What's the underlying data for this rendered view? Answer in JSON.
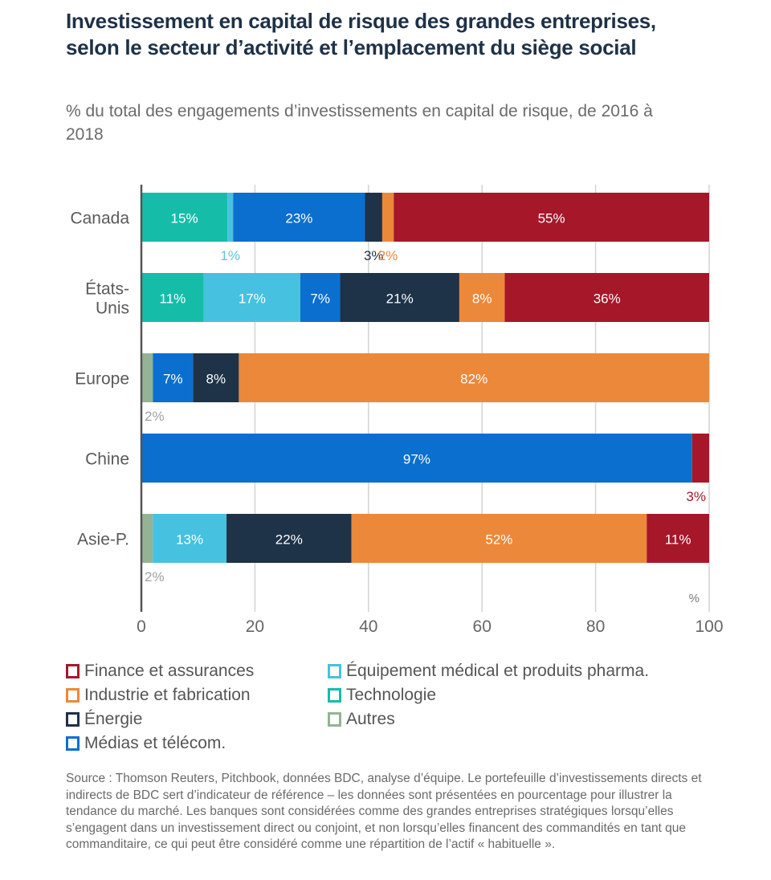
{
  "header": {
    "title": "Investissement en capital de risque des grandes entreprises, selon le secteur d’activité et l’emplacement du siège social",
    "subtitle": "% du total des engagements d’investissements en capital de risque, de 2016 à 2018"
  },
  "chart_data": {
    "type": "bar",
    "orientation": "horizontal",
    "stacked": true,
    "title": "Investissement en capital de risque des grandes entreprises, selon le secteur d’activité et l’emplacement du siège social",
    "subtitle": "% du total des engagements d’investissements en capital de risque, de 2016 à 2018",
    "xlabel": "%",
    "ylabel": "",
    "xlim": [
      0,
      100
    ],
    "xticks": [
      "0",
      "20",
      "40",
      "60",
      "80",
      "100"
    ],
    "grid": true,
    "legend_position": "bottom",
    "categories": [
      "Canada",
      "États-Unis",
      "Europe",
      "Chine",
      "Asie-P."
    ],
    "category_labels": [
      [
        "Canada"
      ],
      [
        "États-",
        "Unis"
      ],
      [
        "Europe"
      ],
      [
        "Chine"
      ],
      [
        "Asie-P."
      ]
    ],
    "series": [
      {
        "name": "Autres",
        "color": "#94b394",
        "values": [
          0,
          0,
          2,
          0,
          2
        ]
      },
      {
        "name": "Technologie",
        "color": "#15bda9",
        "values": [
          15,
          11,
          0,
          0,
          0
        ]
      },
      {
        "name": "Équipement médical et produits pharma.",
        "color": "#47c1e0",
        "values": [
          1,
          17,
          0,
          0,
          13
        ]
      },
      {
        "name": "Médias et télécom.",
        "color": "#0b6fcf",
        "values": [
          23,
          7,
          7,
          97,
          0
        ]
      },
      {
        "name": "Énergie",
        "color": "#1e3248",
        "values": [
          3,
          21,
          8,
          0,
          22
        ]
      },
      {
        "name": "Industrie et fabrication",
        "color": "#ec883a",
        "values": [
          2,
          8,
          82,
          0,
          52
        ]
      },
      {
        "name": "Finance et assurances",
        "color": "#a6172a",
        "values": [
          55,
          36,
          0,
          3,
          11
        ]
      }
    ],
    "data_labels": [
      [
        null,
        "15%",
        "1%",
        "23%",
        "3%",
        "2%",
        "55%"
      ],
      [
        null,
        "11%",
        "17%",
        "7%",
        "21%",
        "8%",
        "36%"
      ],
      [
        "2%",
        null,
        null,
        "7%",
        "8%",
        "82%",
        null
      ],
      [
        null,
        null,
        null,
        "97%",
        null,
        null,
        "3%"
      ],
      [
        "2%",
        null,
        "13%",
        null,
        "22%",
        "52%",
        "11%"
      ]
    ],
    "label_outside": [
      [
        false,
        false,
        true,
        false,
        true,
        true,
        false
      ],
      [
        false,
        false,
        false,
        false,
        false,
        false,
        false
      ],
      [
        true,
        false,
        false,
        false,
        false,
        false,
        false
      ],
      [
        false,
        false,
        false,
        false,
        false,
        false,
        true
      ],
      [
        true,
        false,
        false,
        false,
        false,
        false,
        false
      ]
    ]
  },
  "legend": {
    "items": [
      {
        "label": "Finance et assurances",
        "color": "#a6172a"
      },
      {
        "label": "Industrie et fabrication",
        "color": "#ec883a"
      },
      {
        "label": "Énergie",
        "color": "#1e3248"
      },
      {
        "label": "Médias et télécom.",
        "color": "#0b6fcf"
      },
      {
        "label": "Équipement médical et produits pharma.",
        "color": "#47c1e0"
      },
      {
        "label": "Technologie",
        "color": "#15bda9"
      },
      {
        "label": "Autres",
        "color": "#94b394"
      }
    ]
  },
  "footer": {
    "source": "Source : Thomson Reuters, Pitchbook, données BDC, analyse d’équipe. Le portefeuille d’investissements directs et indirects de BDC sert d’indicateur de référence – les données sont présentées en pourcentage pour illustrer la tendance du marché. Les banques sont considérées comme des grandes entreprises stratégiques lorsqu’elles s’engagent dans un investissement direct ou conjoint, et non lorsqu’elles financent des commandités en tant que commanditaire, ce qui peut être considéré comme une répartition de l’actif « habituelle »."
  }
}
